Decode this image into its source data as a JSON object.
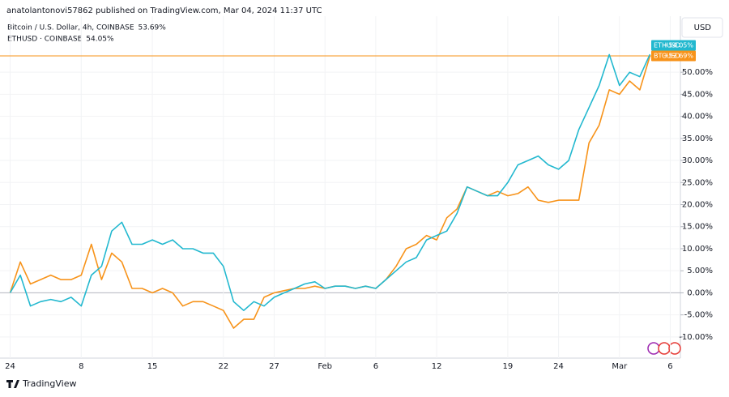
{
  "chart_data": {
    "type": "line",
    "header": "anatolantonovi57862 published on TradingView.com, Mar 04, 2024 11:37 UTC",
    "axis_unit": "USD",
    "brand": "TradingView",
    "x": [
      "2024-01-01",
      "2024-01-02",
      "2024-01-03",
      "2024-01-04",
      "2024-01-05",
      "2024-01-06",
      "2024-01-07",
      "2024-01-08",
      "2024-01-09",
      "2024-01-10",
      "2024-01-11",
      "2024-01-12",
      "2024-01-13",
      "2024-01-14",
      "2024-01-15",
      "2024-01-16",
      "2024-01-17",
      "2024-01-18",
      "2024-01-19",
      "2024-01-20",
      "2024-01-21",
      "2024-01-22",
      "2024-01-23",
      "2024-01-24",
      "2024-01-25",
      "2024-01-26",
      "2024-01-27",
      "2024-01-28",
      "2024-01-29",
      "2024-01-30",
      "2024-01-31",
      "2024-02-01",
      "2024-02-02",
      "2024-02-03",
      "2024-02-04",
      "2024-02-05",
      "2024-02-06",
      "2024-02-07",
      "2024-02-08",
      "2024-02-09",
      "2024-02-10",
      "2024-02-11",
      "2024-02-12",
      "2024-02-13",
      "2024-02-14",
      "2024-02-15",
      "2024-02-16",
      "2024-02-17",
      "2024-02-18",
      "2024-02-19",
      "2024-02-20",
      "2024-02-21",
      "2024-02-22",
      "2024-02-23",
      "2024-02-24",
      "2024-02-25",
      "2024-02-26",
      "2024-02-27",
      "2024-02-28",
      "2024-02-29",
      "2024-03-01",
      "2024-03-02",
      "2024-03-03",
      "2024-03-04"
    ],
    "series": [
      {
        "name": "Bitcoin / U.S. Dollar, 4h, COINBASE",
        "symbol": "BTCUSD",
        "legend_value": "53.69%",
        "badge": "+53.69%",
        "color": "#f7931a",
        "values": [
          0,
          7,
          2,
          3,
          4,
          3,
          3,
          4,
          11,
          3,
          9,
          7,
          1,
          1,
          0,
          1,
          0,
          -3,
          -2,
          -2,
          -3,
          -4,
          -8,
          -6,
          -6,
          -1,
          0,
          0.5,
          1,
          1,
          1.5,
          1,
          1.5,
          1.5,
          1,
          1.5,
          1,
          3,
          6,
          10,
          11,
          13,
          12,
          17,
          19,
          24,
          23,
          22,
          23,
          22,
          22.5,
          24,
          21,
          20.5,
          21,
          21,
          21,
          34,
          38,
          46,
          45,
          48,
          46,
          53.69
        ]
      },
      {
        "name": "ETHUSD · COINBASE",
        "symbol": "ETHUSD",
        "legend_value": "54.05%",
        "badge": "+54.05%",
        "color": "#22b8cf",
        "values": [
          0,
          4,
          -3,
          -2,
          -1.5,
          -2,
          -1,
          -3,
          4,
          6,
          14,
          16,
          11,
          11,
          12,
          11,
          12,
          10,
          10,
          9,
          9,
          6,
          -2,
          -4,
          -2,
          -3,
          -1,
          0,
          1,
          2,
          2.5,
          1,
          1.5,
          1.5,
          1,
          1.5,
          1,
          3,
          5,
          7,
          8,
          12,
          13,
          14,
          18,
          24,
          23,
          22,
          22,
          25,
          29,
          30,
          31,
          29,
          28,
          30,
          37,
          42,
          47,
          54,
          47,
          50,
          49,
          54.05
        ]
      }
    ],
    "xlim": [
      "2023-12-31",
      "2024-03-07"
    ],
    "xticks": [
      {
        "value": "2024-01-01",
        "label": "24"
      },
      {
        "value": "2024-01-08",
        "label": "8"
      },
      {
        "value": "2024-01-15",
        "label": "15"
      },
      {
        "value": "2024-01-22",
        "label": "22"
      },
      {
        "value": "2024-01-27",
        "label": "27"
      },
      {
        "value": "2024-02-01",
        "label": "Feb"
      },
      {
        "value": "2024-02-06",
        "label": "6"
      },
      {
        "value": "2024-02-12",
        "label": "12"
      },
      {
        "value": "2024-02-19",
        "label": "19"
      },
      {
        "value": "2024-02-24",
        "label": "24"
      },
      {
        "value": "2024-03-01",
        "label": "Mar"
      },
      {
        "value": "2024-03-06",
        "label": "6"
      }
    ],
    "ylim": [
      -14.8,
      62.7
    ],
    "yticks": [
      {
        "value": -10,
        "label": "-10.00%"
      },
      {
        "value": -5,
        "label": "-5.00%"
      },
      {
        "value": 0,
        "label": "0.00%"
      },
      {
        "value": 5,
        "label": "5.00%"
      },
      {
        "value": 10,
        "label": "10.00%"
      },
      {
        "value": 15,
        "label": "15.00%"
      },
      {
        "value": 20,
        "label": "20.00%"
      },
      {
        "value": 25,
        "label": "25.00%"
      },
      {
        "value": 30,
        "label": "30.00%"
      },
      {
        "value": 35,
        "label": "35.00%"
      },
      {
        "value": 40,
        "label": "40.00%"
      },
      {
        "value": 45,
        "label": "45.00%"
      },
      {
        "value": 50,
        "label": "50.00%"
      }
    ],
    "grid": true
  }
}
